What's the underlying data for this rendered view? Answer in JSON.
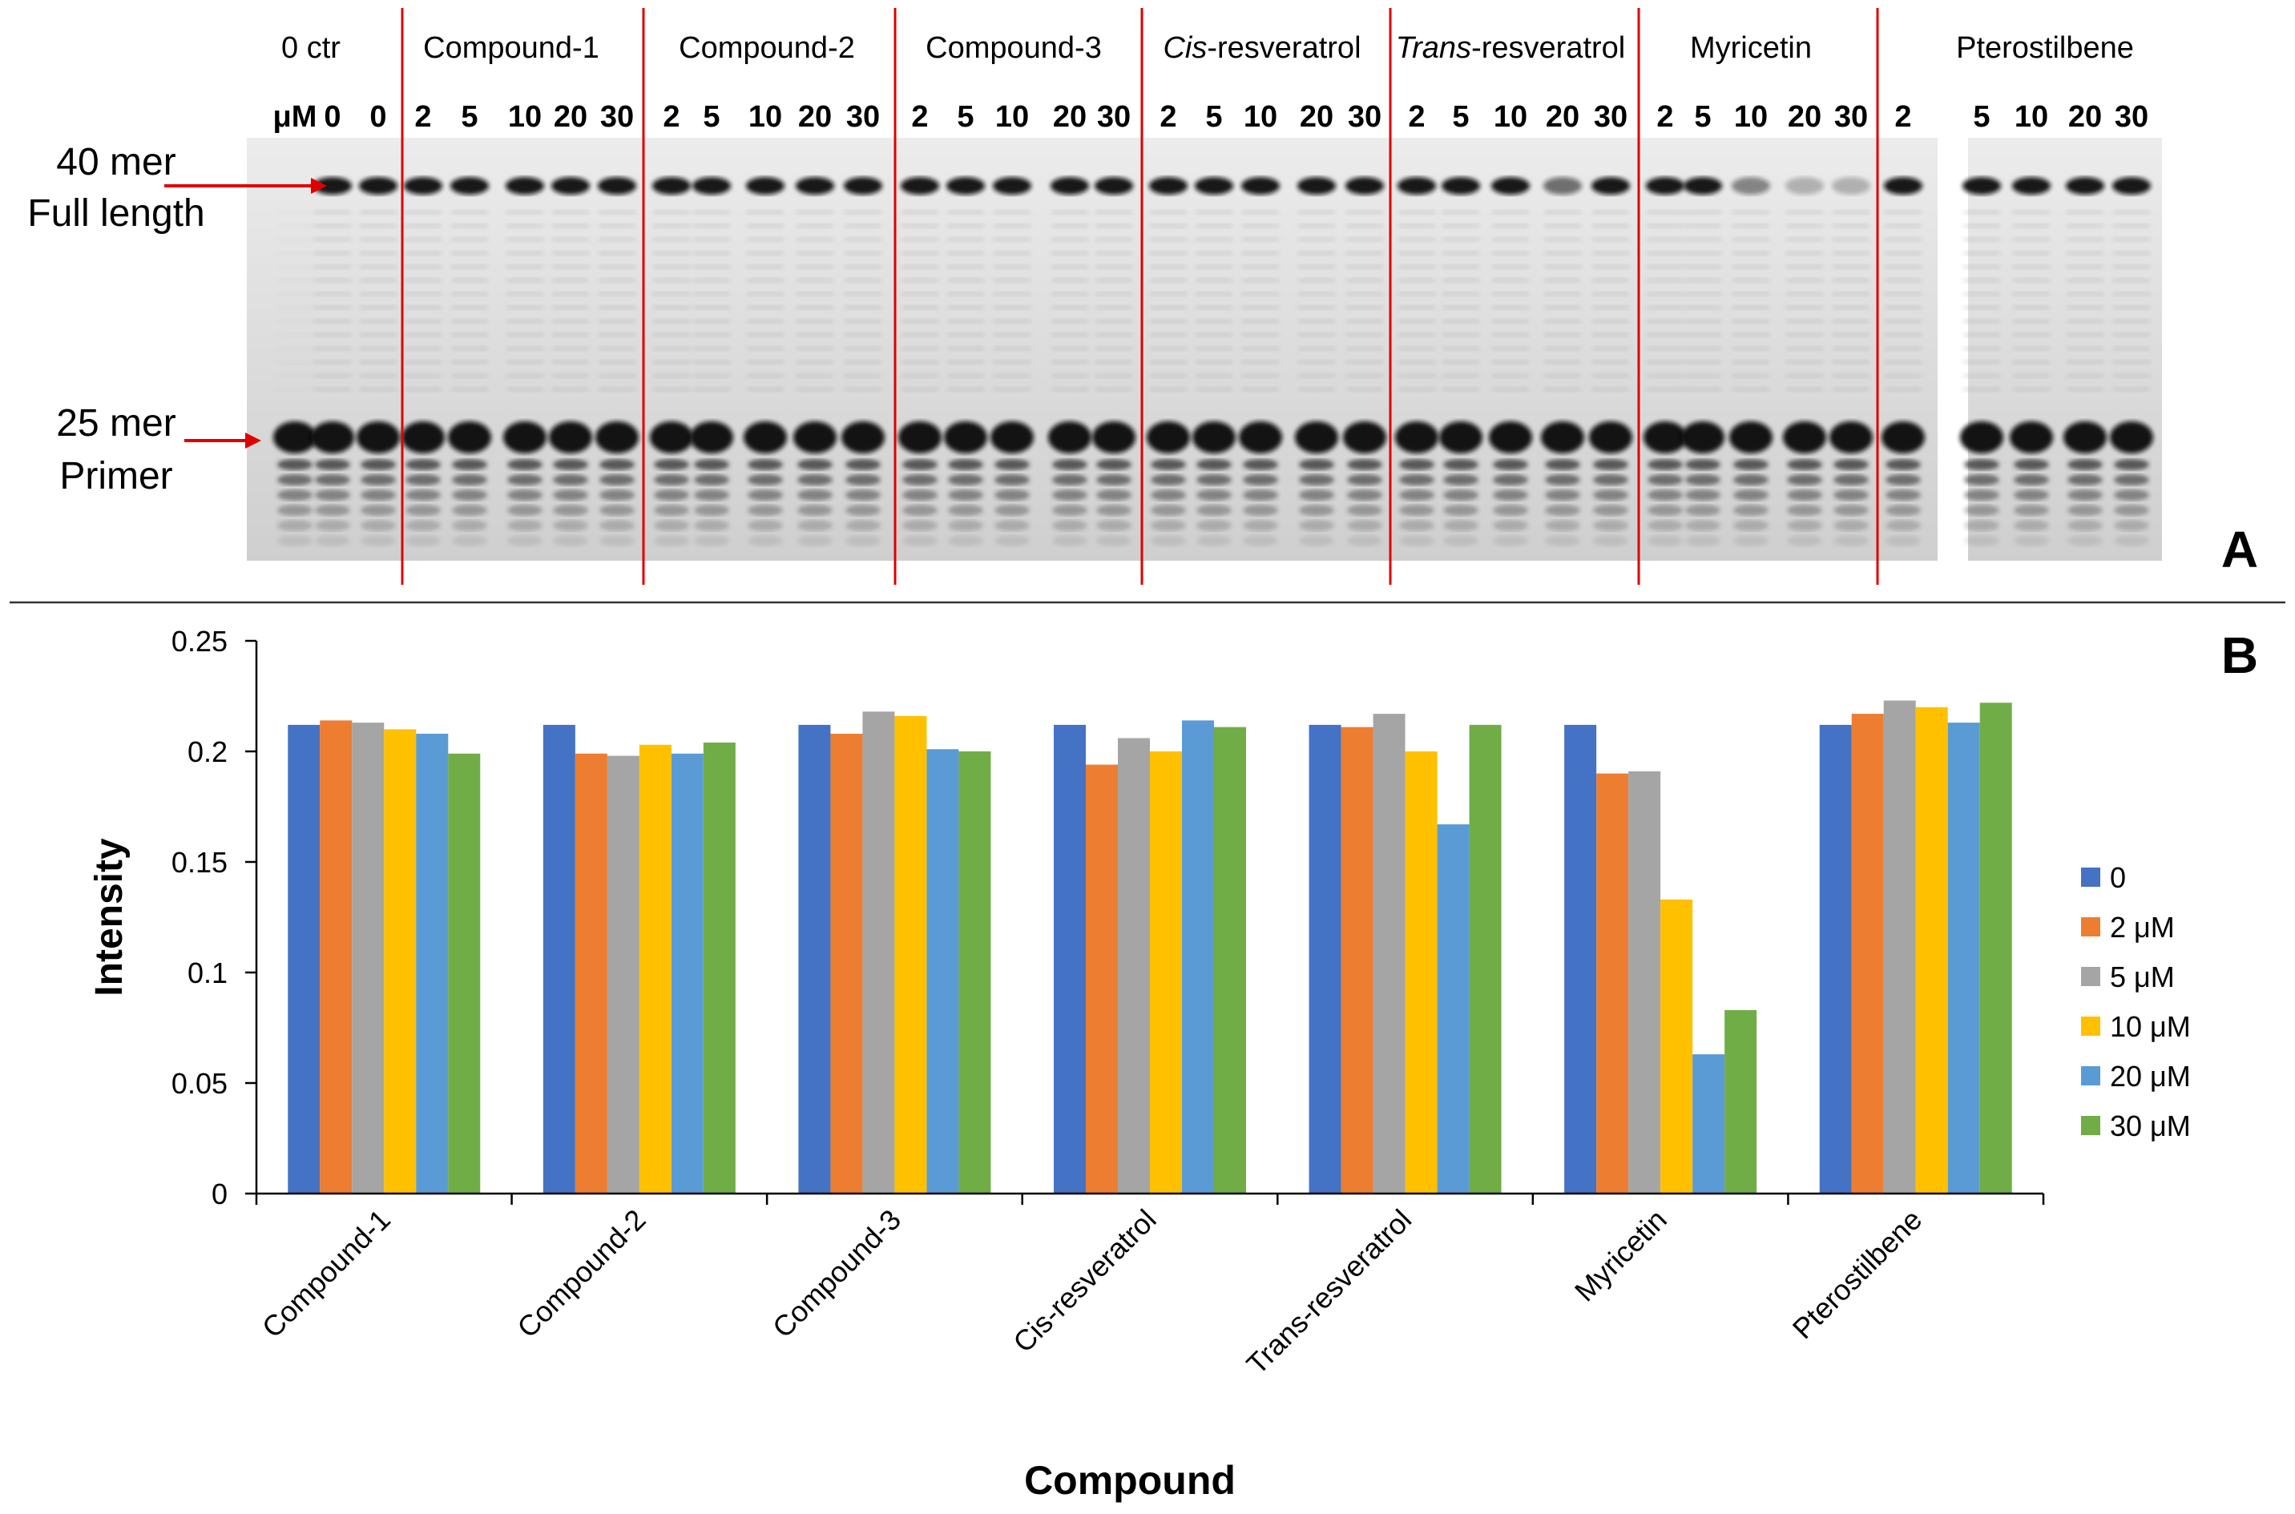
{
  "panel_labels": {
    "a": "A",
    "b": "B"
  },
  "gel": {
    "groups": [
      {
        "label": "0 ctr",
        "italic_part": "",
        "rest": "0 ctr",
        "lanes": [
          "μM",
          "0",
          "0"
        ]
      },
      {
        "label": "Compound-1",
        "italic_part": "",
        "rest": "Compound-1",
        "lanes": [
          "2",
          "5",
          "10",
          "20",
          "30"
        ]
      },
      {
        "label": "Compound-2",
        "italic_part": "",
        "rest": "Compound-2",
        "lanes": [
          "2",
          "5",
          "10",
          "20",
          "30"
        ]
      },
      {
        "label": "Compound-3",
        "italic_part": "",
        "rest": "Compound-3",
        "lanes": [
          "2",
          "5",
          "10",
          "20",
          "30"
        ]
      },
      {
        "label": "Cis-resveratrol",
        "italic_part": "Cis",
        "rest": "-resveratrol",
        "lanes": [
          "2",
          "5",
          "10",
          "20",
          "30"
        ]
      },
      {
        "label": "Trans-resveratrol",
        "italic_part": "Trans",
        "rest": "-resveratrol",
        "lanes": [
          "2",
          "5",
          "10",
          "20",
          "30"
        ]
      },
      {
        "label": "Myricetin",
        "italic_part": "",
        "rest": "Myricetin",
        "lanes": [
          "2",
          "5",
          "10",
          "20",
          "30"
        ]
      },
      {
        "label": "Pterostilbene",
        "italic_part": "",
        "rest": "Pterostilbene",
        "lanes": [
          "2",
          "5",
          "10",
          "20",
          "30"
        ]
      }
    ],
    "markers": {
      "full_length": [
        "40 mer",
        "Full length"
      ],
      "primer": [
        "25 mer",
        "Primer"
      ]
    }
  },
  "chart_data": {
    "type": "bar",
    "title": "",
    "xlabel": "Compound",
    "ylabel": "Intensity",
    "ylim": [
      0,
      0.25
    ],
    "yticks": [
      "0",
      "0.05",
      "0.1",
      "0.15",
      "0.2",
      "0.25"
    ],
    "ytick_values": [
      0,
      0.05,
      0.1,
      0.15,
      0.2,
      0.25
    ],
    "categories": [
      "Compound-1",
      "Compound-2",
      "Compound-3",
      "Cis-resveratrol",
      "Trans-resveratrol",
      "Myricetin",
      "Pterostilbene"
    ],
    "legend_position": "right",
    "series": [
      {
        "name": "0",
        "color": "#4472C4",
        "values": [
          0.212,
          0.212,
          0.212,
          0.212,
          0.212,
          0.212,
          0.212
        ]
      },
      {
        "name": "2 μM",
        "color": "#ED7D31",
        "values": [
          0.214,
          0.199,
          0.208,
          0.194,
          0.211,
          0.19,
          0.217
        ]
      },
      {
        "name": "5 μM",
        "color": "#A5A5A5",
        "values": [
          0.213,
          0.198,
          0.218,
          0.206,
          0.217,
          0.191,
          0.223
        ]
      },
      {
        "name": "10 μM",
        "color": "#FFC000",
        "values": [
          0.21,
          0.203,
          0.216,
          0.2,
          0.2,
          0.133,
          0.22
        ]
      },
      {
        "name": "20 μM",
        "color": "#5B9BD5",
        "values": [
          0.208,
          0.199,
          0.201,
          0.214,
          0.167,
          0.063,
          0.213
        ]
      },
      {
        "name": "30 μM",
        "color": "#70AD47",
        "values": [
          0.199,
          0.204,
          0.2,
          0.211,
          0.212,
          0.083,
          0.222
        ]
      }
    ]
  }
}
